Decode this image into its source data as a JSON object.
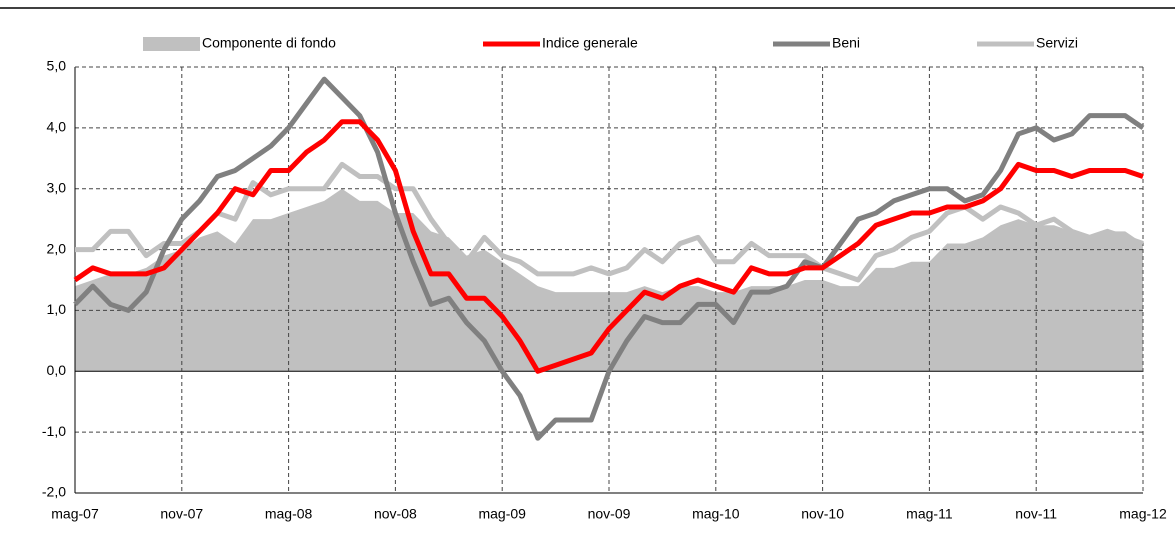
{
  "chart_data": {
    "type": "line",
    "categories": [
      "mag-07",
      null,
      null,
      null,
      null,
      null,
      "nov-07",
      null,
      null,
      null,
      null,
      null,
      "mag-08",
      null,
      null,
      null,
      null,
      null,
      "nov-08",
      null,
      null,
      null,
      null,
      null,
      "mag-09",
      null,
      null,
      null,
      null,
      null,
      "nov-09",
      null,
      null,
      null,
      null,
      null,
      "mag-10",
      null,
      null,
      null,
      null,
      null,
      "nov-10",
      null,
      null,
      null,
      null,
      null,
      "mag-11",
      null,
      null,
      null,
      null,
      null,
      "nov-11",
      null,
      null,
      null,
      null,
      null,
      "mag-12"
    ],
    "series": [
      {
        "name": "Componente di fondo",
        "style": "area",
        "color": "#c0c0c0",
        "values": [
          1.4,
          1.5,
          1.6,
          1.6,
          1.7,
          1.9,
          2.0,
          2.2,
          2.3,
          2.1,
          2.5,
          2.5,
          2.6,
          2.7,
          2.8,
          3.0,
          2.8,
          2.8,
          2.6,
          2.6,
          2.3,
          2.2,
          1.9,
          2.0,
          1.8,
          1.6,
          1.4,
          1.3,
          1.3,
          1.3,
          1.3,
          1.3,
          1.4,
          1.3,
          1.4,
          1.4,
          1.3,
          1.3,
          1.4,
          1.4,
          1.4,
          1.5,
          1.5,
          1.4,
          1.4,
          1.7,
          1.7,
          1.8,
          1.8,
          2.1,
          2.1,
          2.2,
          2.4,
          2.5,
          2.4,
          2.4,
          2.3,
          2.2,
          2.3,
          2.3,
          2.1
        ]
      },
      {
        "name": "Indice generale",
        "style": "line",
        "color": "#ff0000",
        "values": [
          1.5,
          1.7,
          1.6,
          1.6,
          1.6,
          1.7,
          2.0,
          2.3,
          2.6,
          3.0,
          2.9,
          3.3,
          3.3,
          3.6,
          3.8,
          4.1,
          4.1,
          3.8,
          3.3,
          2.3,
          1.6,
          1.6,
          1.2,
          1.2,
          0.9,
          0.5,
          0.0,
          0.1,
          0.2,
          0.3,
          0.7,
          1.0,
          1.3,
          1.2,
          1.4,
          1.5,
          1.4,
          1.3,
          1.7,
          1.6,
          1.6,
          1.7,
          1.7,
          1.9,
          2.1,
          2.4,
          2.5,
          2.6,
          2.6,
          2.7,
          2.7,
          2.8,
          3.0,
          3.4,
          3.3,
          3.3,
          3.2,
          3.3,
          3.3,
          3.3,
          3.2
        ]
      },
      {
        "name": "Beni",
        "style": "line",
        "color": "#808080",
        "values": [
          1.1,
          1.4,
          1.1,
          1.0,
          1.3,
          2.0,
          2.5,
          2.8,
          3.2,
          3.3,
          3.5,
          3.7,
          4.0,
          4.4,
          4.8,
          4.5,
          4.2,
          3.6,
          2.6,
          1.8,
          1.1,
          1.2,
          0.8,
          0.5,
          0.0,
          -0.4,
          -1.1,
          -0.8,
          -0.8,
          -0.8,
          0.0,
          0.5,
          0.9,
          0.8,
          0.8,
          1.1,
          1.1,
          0.8,
          1.3,
          1.3,
          1.4,
          1.8,
          1.7,
          2.1,
          2.5,
          2.6,
          2.8,
          2.9,
          3.0,
          3.0,
          2.8,
          2.9,
          3.3,
          3.9,
          4.0,
          3.8,
          3.9,
          4.2,
          4.2,
          4.2,
          4.0
        ]
      },
      {
        "name": "Servizi",
        "style": "line",
        "color": "#c0c0c0",
        "values": [
          2.0,
          2.0,
          2.3,
          2.3,
          1.9,
          2.1,
          2.1,
          2.3,
          2.6,
          2.5,
          3.1,
          2.9,
          3.0,
          3.0,
          3.0,
          3.4,
          3.2,
          3.2,
          3.0,
          3.0,
          2.5,
          2.1,
          1.8,
          2.2,
          1.9,
          1.8,
          1.6,
          1.6,
          1.6,
          1.7,
          1.6,
          1.7,
          2.0,
          1.8,
          2.1,
          2.2,
          1.8,
          1.8,
          2.1,
          1.9,
          1.9,
          1.9,
          1.7,
          1.6,
          1.5,
          1.9,
          2.0,
          2.2,
          2.3,
          2.6,
          2.7,
          2.5,
          2.7,
          2.6,
          2.4,
          2.5,
          2.3,
          2.2,
          2.3,
          2.2,
          2.1
        ]
      }
    ],
    "ylim": [
      -2,
      5
    ],
    "yticks": [
      {
        "value": -2,
        "label": "-2,0"
      },
      {
        "value": -1,
        "label": "-1,0"
      },
      {
        "value": 0,
        "label": "0,0"
      },
      {
        "value": 1,
        "label": "1,0"
      },
      {
        "value": 2,
        "label": "2,0"
      },
      {
        "value": 3,
        "label": "3,0"
      },
      {
        "value": 4,
        "label": "4,0"
      },
      {
        "value": 5,
        "label": "5,0"
      }
    ],
    "grid": true,
    "legend": "top"
  }
}
